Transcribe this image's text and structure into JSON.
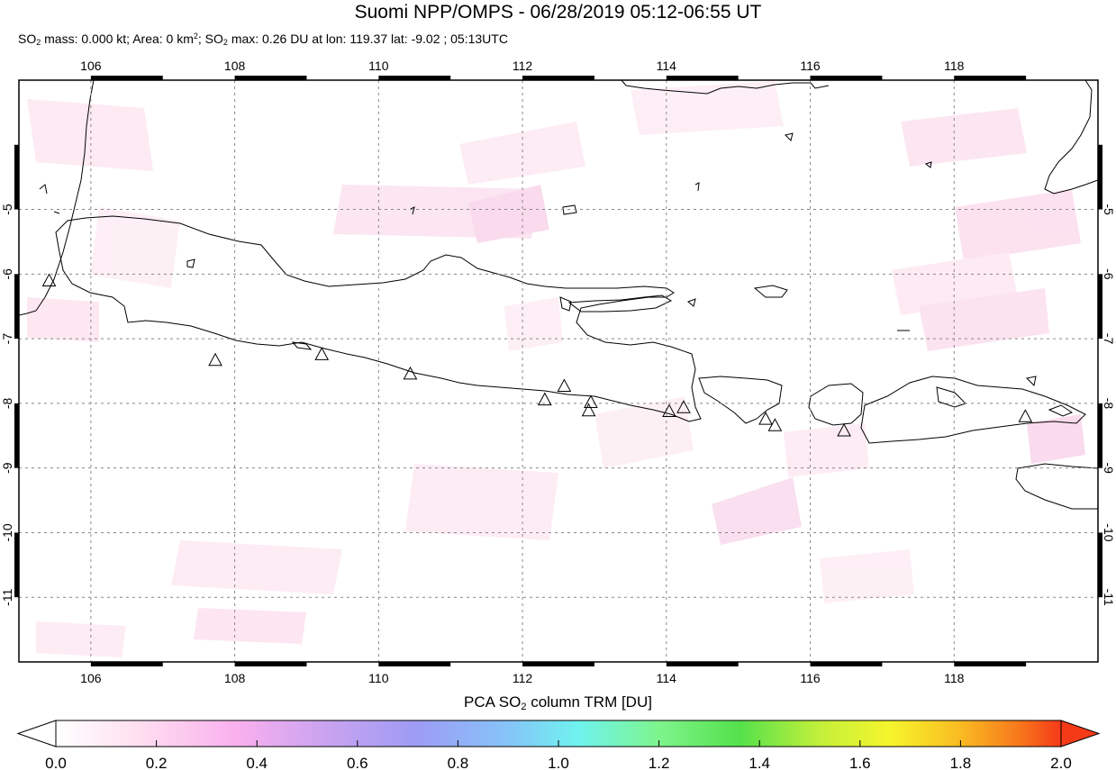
{
  "title": "Suomi NPP/OMPS - 06/28/2019 05:12-06:55 UT",
  "subtitle": {
    "p1": "SO",
    "p2": " mass: 0.000 kt; Area: 0 km",
    "p3": "; SO",
    "p4": " max: 0.26 DU at lon: 119.37 lat: -9.02 ; 05:13UTC",
    "sub": "2",
    "sup": "2"
  },
  "map": {
    "lon_range": [
      105.0,
      120.0
    ],
    "lat_range": [
      -12.0,
      -3.0
    ],
    "lon_ticks": [
      "106",
      "108",
      "110",
      "112",
      "114",
      "116",
      "118"
    ],
    "lat_ticks": [
      "-5",
      "-6",
      "-7",
      "-8",
      "-9",
      "-10",
      "-11"
    ],
    "volcanoes": [
      {
        "lon": 105.42,
        "lat": -6.1
      },
      {
        "lon": 107.73,
        "lat": -7.33
      },
      {
        "lon": 109.21,
        "lat": -7.24
      },
      {
        "lon": 110.44,
        "lat": -7.54
      },
      {
        "lon": 112.31,
        "lat": -7.94
      },
      {
        "lon": 112.58,
        "lat": -7.73
      },
      {
        "lon": 112.95,
        "lat": -7.98
      },
      {
        "lon": 112.92,
        "lat": -8.11
      },
      {
        "lon": 114.04,
        "lat": -8.12
      },
      {
        "lon": 114.24,
        "lat": -8.06
      },
      {
        "lon": 115.38,
        "lat": -8.24
      },
      {
        "lon": 115.51,
        "lat": -8.34
      },
      {
        "lon": 116.47,
        "lat": -8.42
      },
      {
        "lon": 118.99,
        "lat": -8.2
      }
    ]
  },
  "colorbar": {
    "title_p1": "PCA SO",
    "title_sub": "2",
    "title_p2": " column TRM [DU]",
    "ticks": [
      "0.0",
      "0.2",
      "0.4",
      "0.6",
      "0.8",
      "1.0",
      "1.2",
      "1.4",
      "1.6",
      "1.8",
      "2.0"
    ],
    "range": [
      0.0,
      2.0
    ],
    "colors": [
      "#ffffff",
      "#ffe0f0",
      "#f9b0ee",
      "#c9a3f0",
      "#9d9cf5",
      "#86c4f8",
      "#6ff3ee",
      "#7ef48c",
      "#54e14b",
      "#c3f03a",
      "#f6f52c",
      "#f9bb22",
      "#f8751c",
      "#f53a18"
    ]
  }
}
